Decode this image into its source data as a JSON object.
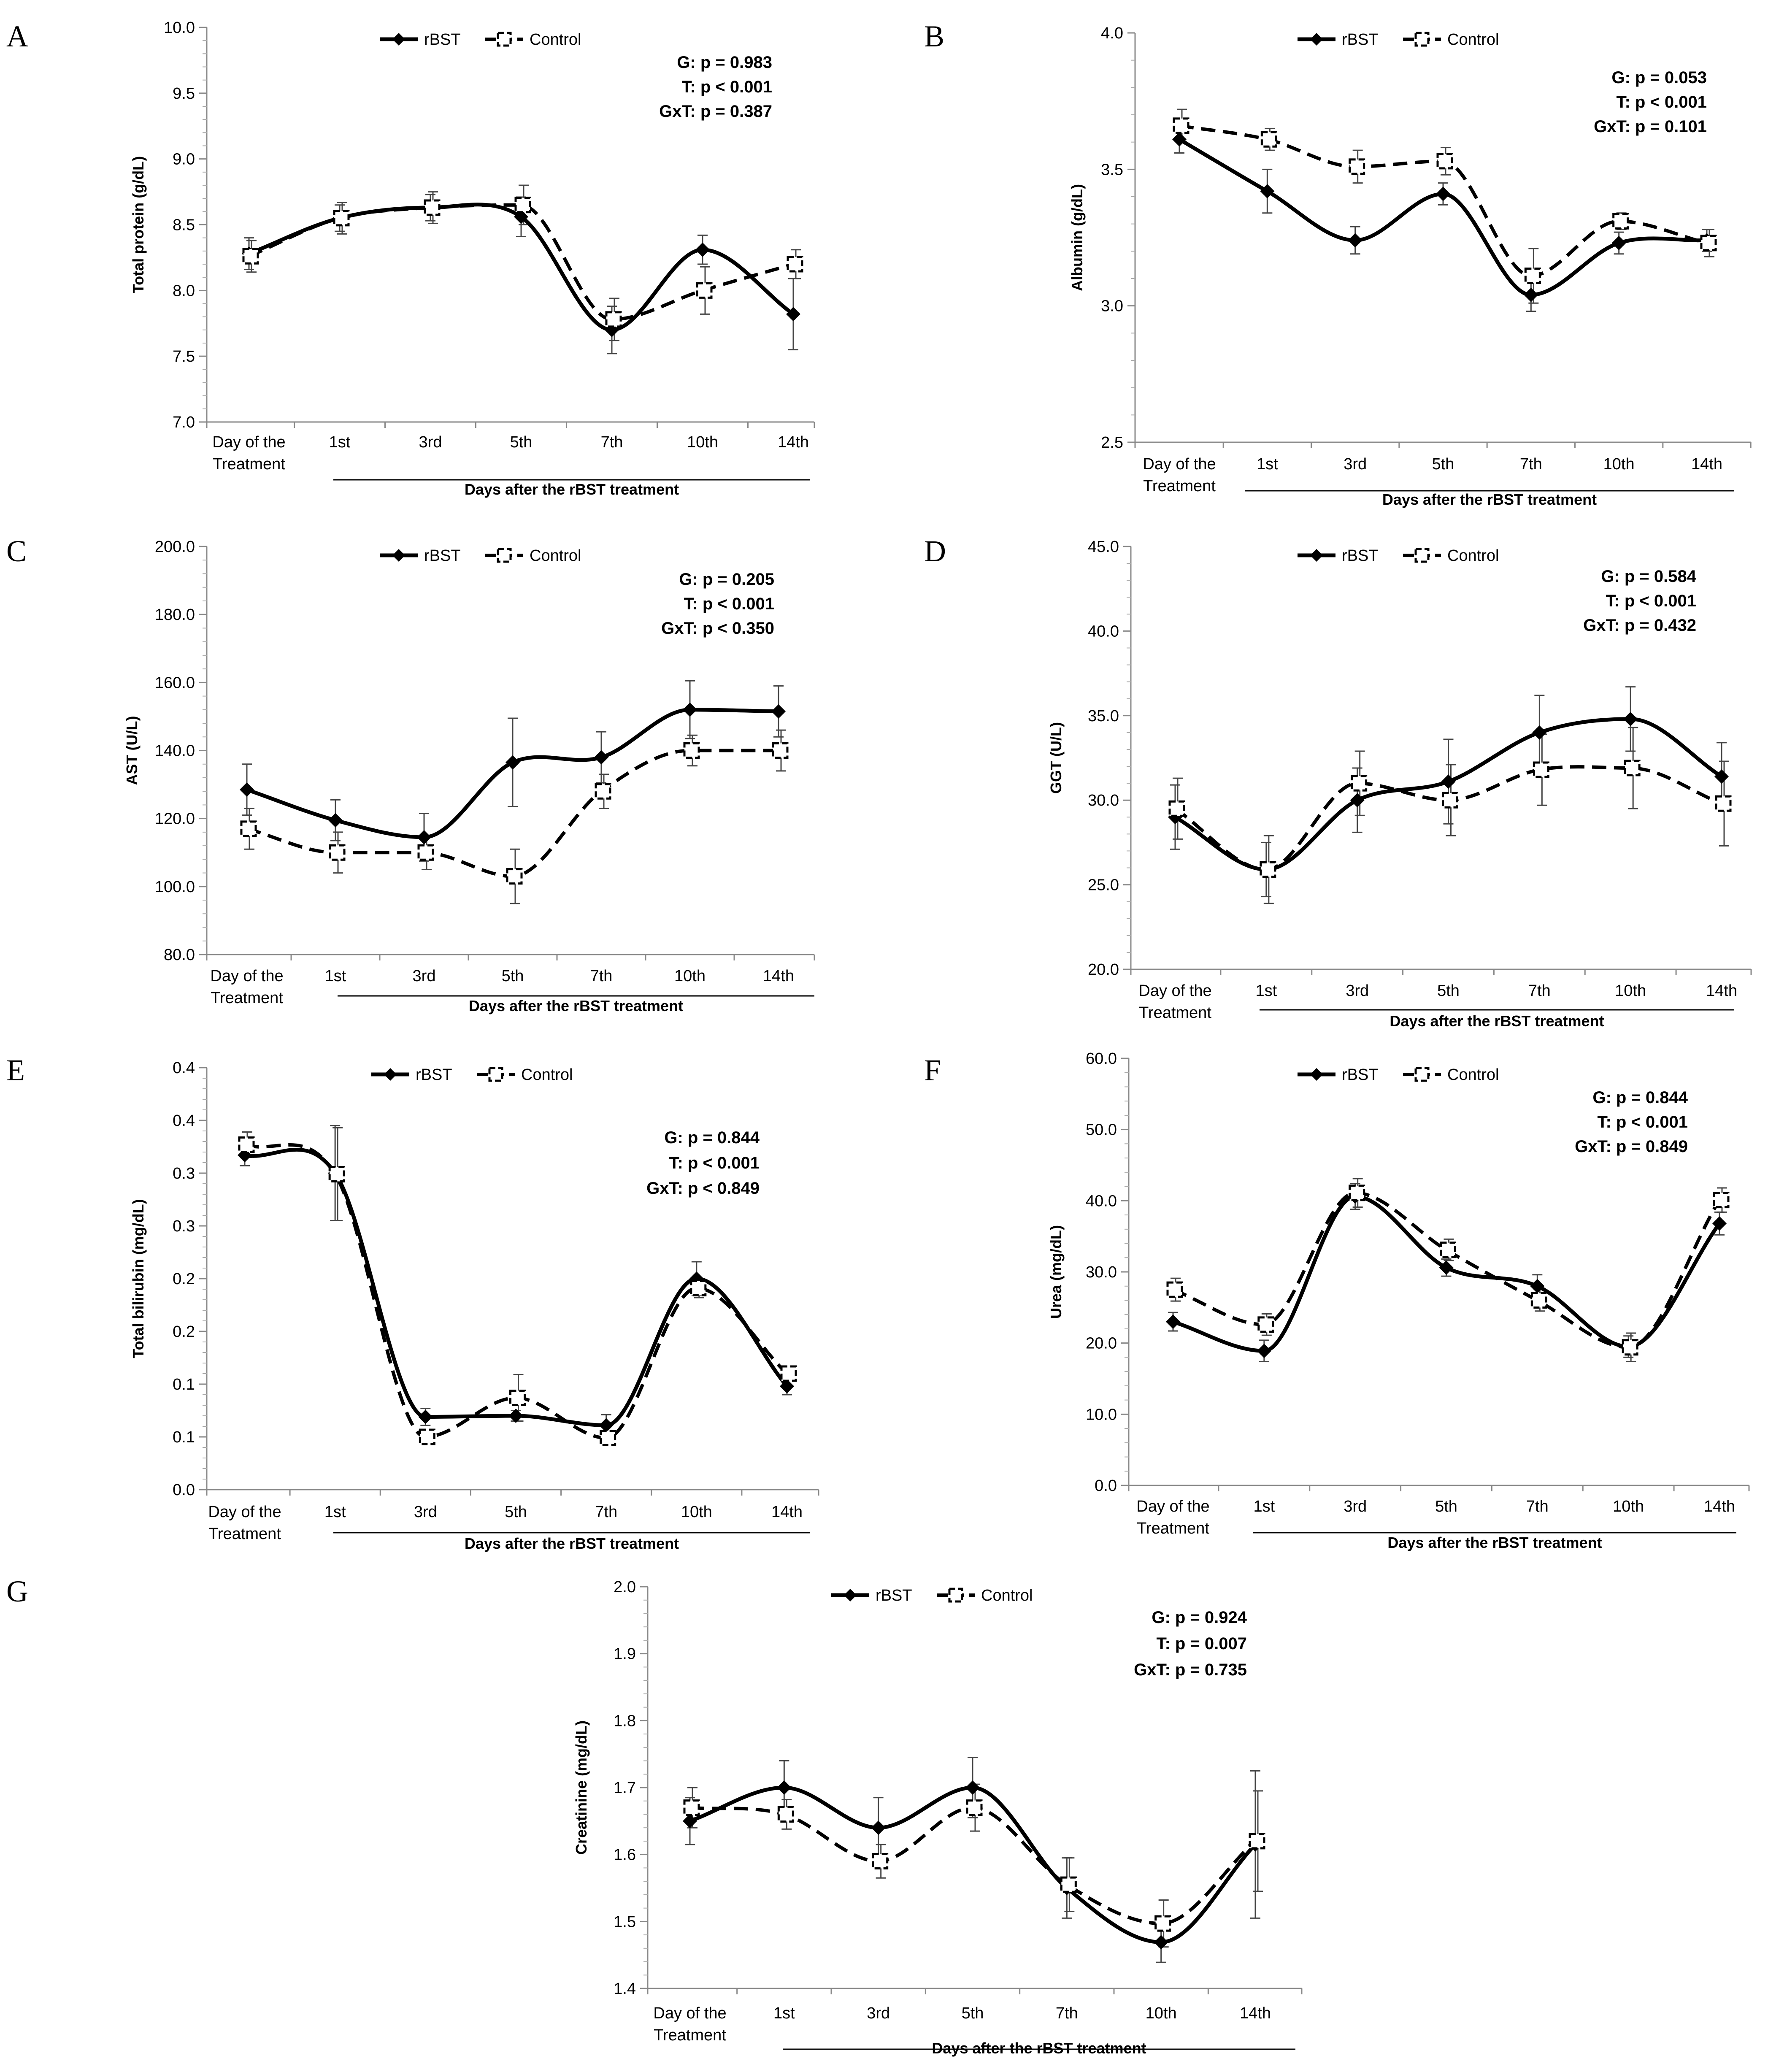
{
  "figure": {
    "series_names": [
      "rBST",
      "Control"
    ],
    "categories": [
      "Day of the Treatment",
      "1st",
      "3rd",
      "5th",
      "7th",
      "10th",
      "14th"
    ],
    "group_label": "Days after the rBST treatment"
  },
  "chart_data": [
    {
      "panel": "A",
      "type": "line",
      "ylabel": "Total protein (g/dL)",
      "ylim": [
        7.0,
        10.0
      ],
      "ystep": 0.5,
      "decimals": 1,
      "categories": [
        "Day of the\nTreatment",
        "1st",
        "3rd",
        "5th",
        "7th",
        "10th",
        "14th"
      ],
      "xlabel": "Days after the rBST treatment",
      "series": [
        {
          "name": "rBST",
          "values": [
            8.28,
            8.55,
            8.63,
            8.56,
            7.7,
            8.31,
            7.82
          ],
          "errors": [
            0.12,
            0.1,
            0.1,
            0.15,
            0.18,
            0.11,
            0.27
          ]
        },
        {
          "name": "Control",
          "values": [
            8.26,
            8.55,
            8.63,
            8.65,
            7.78,
            8.0,
            8.2
          ],
          "errors": [
            0.12,
            0.12,
            0.12,
            0.15,
            0.16,
            0.18,
            0.11
          ]
        }
      ],
      "stats": [
        "G: p = 0.983",
        "T: p <  0.001",
        "GxT: p =  0.387"
      ],
      "legend": [
        "rBST",
        "Control"
      ]
    },
    {
      "panel": "B",
      "type": "line",
      "ylabel": "Albumin (g/dL)",
      "ylim": [
        2.5,
        4.0
      ],
      "ystep": 0.5,
      "decimals": 1,
      "categories": [
        "Day of the\nTreatment",
        "1st",
        "3rd",
        "5th",
        "7th",
        "10th",
        "14th"
      ],
      "xlabel": "Days after the rBST treatment",
      "series": [
        {
          "name": "rBST",
          "values": [
            3.61,
            3.42,
            3.24,
            3.41,
            3.04,
            3.23,
            3.24
          ],
          "errors": [
            0.05,
            0.08,
            0.05,
            0.04,
            0.06,
            0.04,
            0.04
          ]
        },
        {
          "name": "Control",
          "values": [
            3.66,
            3.61,
            3.51,
            3.53,
            3.11,
            3.31,
            3.23
          ],
          "errors": [
            0.06,
            0.04,
            0.06,
            0.05,
            0.1,
            0.03,
            0.05
          ]
        }
      ],
      "stats": [
        "G:  p = 0.053",
        "T:  p <  0.001",
        "GxT:  p =  0.101"
      ],
      "legend": [
        "rBST",
        "Control"
      ]
    },
    {
      "panel": "C",
      "type": "line",
      "ylabel": "AST (U/L)",
      "ylim": [
        80.0,
        200.0
      ],
      "ystep": 20.0,
      "decimals": 1,
      "categories": [
        "Day of the\nTreatment",
        "1st",
        "3rd",
        "5th",
        "7th",
        "10th",
        "14th"
      ],
      "xlabel": "Days after the rBST treatment",
      "series": [
        {
          "name": "rBST",
          "values": [
            128.5,
            119.5,
            114.5,
            136.5,
            138.0,
            152.0,
            151.5
          ],
          "errors": [
            7.5,
            6.0,
            7.0,
            13.0,
            7.5,
            8.5,
            7.5
          ]
        },
        {
          "name": "Control",
          "values": [
            117.0,
            110.0,
            110.0,
            103.0,
            128.0,
            140.0,
            140.0
          ],
          "errors": [
            6.0,
            6.0,
            5.0,
            8.0,
            5.0,
            4.5,
            6.0
          ]
        }
      ],
      "stats": [
        "G: p = 0.205",
        "T: p < 0.001",
        "GxT: p < 0.350"
      ],
      "legend": [
        "rBST",
        "Control"
      ]
    },
    {
      "panel": "D",
      "type": "line",
      "ylabel": "GGT (U/L)",
      "ylim": [
        20.0,
        45.0
      ],
      "ystep": 5.0,
      "decimals": 1,
      "categories": [
        "Day of the\nTreatment",
        "1st",
        "3rd",
        "5th",
        "7th",
        "10th",
        "14th"
      ],
      "xlabel": "Days after the rBST treatment",
      "series": [
        {
          "name": "rBST",
          "values": [
            29.0,
            25.9,
            30.0,
            31.1,
            34.0,
            34.8,
            31.4
          ],
          "errors": [
            1.9,
            1.6,
            1.9,
            2.5,
            2.2,
            1.9,
            2.0
          ]
        },
        {
          "name": "Control",
          "values": [
            29.5,
            25.9,
            31.0,
            30.0,
            31.8,
            31.9,
            29.8
          ],
          "errors": [
            1.8,
            2.0,
            1.9,
            2.1,
            2.1,
            2.4,
            2.5
          ]
        }
      ],
      "stats": [
        "G: p = 0.584",
        "T:  p <  0.001",
        "GxT:  p =  0.432"
      ],
      "legend": [
        "rBST",
        "Control"
      ]
    },
    {
      "panel": "E",
      "type": "line",
      "ylabel": "Total bilirubin (mg/dL)",
      "ylim": [
        0.0,
        0.4
      ],
      "ystep": 0.05,
      "decimals": 1,
      "categories": [
        "Day of the\nTreatment",
        "1st",
        "3rd",
        "5th",
        "7th",
        "10th",
        "14th"
      ],
      "xlabel": "Days after the rBST treatment",
      "series": [
        {
          "name": "rBST",
          "values": [
            0.317,
            0.3,
            0.069,
            0.07,
            0.061,
            0.2,
            0.098
          ],
          "errors": [
            0.01,
            0.045,
            0.008,
            0.005,
            0.01,
            0.016,
            0.008
          ]
        },
        {
          "name": "Control",
          "values": [
            0.327,
            0.299,
            0.05,
            0.087,
            0.049,
            0.191,
            0.11
          ],
          "errors": [
            0.012,
            0.044,
            0.005,
            0.022,
            0.006,
            0.009,
            0.005
          ]
        }
      ],
      "stats": [
        "G:  p = 0.844",
        "T:  p <  0.001",
        "GxT:  p <  0.849"
      ],
      "legend": [
        "rBST",
        "Control"
      ]
    },
    {
      "panel": "F",
      "type": "line",
      "ylabel": "Urea (mg/dL)",
      "ylim": [
        0.0,
        60.0
      ],
      "ystep": 10.0,
      "decimals": 1,
      "categories": [
        "Day of the\nTreatment",
        "1st",
        "3rd",
        "5th",
        "7th",
        "10th",
        "14th"
      ],
      "xlabel": "Days after the rBST treatment",
      "series": [
        {
          "name": "rBST",
          "values": [
            23.0,
            18.9,
            40.6,
            30.6,
            28.0,
            19.5,
            36.8
          ],
          "errors": [
            1.3,
            1.5,
            1.8,
            1.2,
            1.6,
            1.5,
            1.6
          ]
        },
        {
          "name": "Control",
          "values": [
            27.5,
            22.6,
            41.1,
            33.1,
            26.0,
            19.4,
            40.1
          ],
          "errors": [
            1.6,
            1.5,
            2.0,
            1.5,
            1.5,
            2.0,
            1.7
          ]
        }
      ],
      "stats": [
        "G:  p = 0.844",
        "T:  p <  0.001",
        "GxT:  p =  0.849"
      ],
      "legend": [
        "rBST",
        "Control"
      ]
    },
    {
      "panel": "G",
      "type": "line",
      "ylabel": "Creatinine (mg/dL)",
      "ylim": [
        1.4,
        2.0
      ],
      "ystep": 0.1,
      "decimals": 1,
      "categories": [
        "Day of the\nTreatment",
        "1st",
        "3rd",
        "5th",
        "7th",
        "10th",
        "14th"
      ],
      "xlabel": "Days after the rBST treatment",
      "series": [
        {
          "name": "rBST",
          "values": [
            1.65,
            1.7,
            1.64,
            1.7,
            1.55,
            1.469,
            1.615
          ],
          "errors": [
            0.035,
            0.04,
            0.045,
            0.045,
            0.045,
            0.03,
            0.11
          ]
        },
        {
          "name": "Control",
          "values": [
            1.67,
            1.66,
            1.59,
            1.67,
            1.555,
            1.497,
            1.62
          ],
          "errors": [
            0.03,
            0.022,
            0.025,
            0.035,
            0.04,
            0.035,
            0.075
          ]
        }
      ],
      "stats": [
        "G:  p = 0.924",
        "T:  p =  0.007",
        "GxT:  p =  0.735"
      ],
      "legend": [
        "rBST",
        "Control"
      ]
    }
  ]
}
